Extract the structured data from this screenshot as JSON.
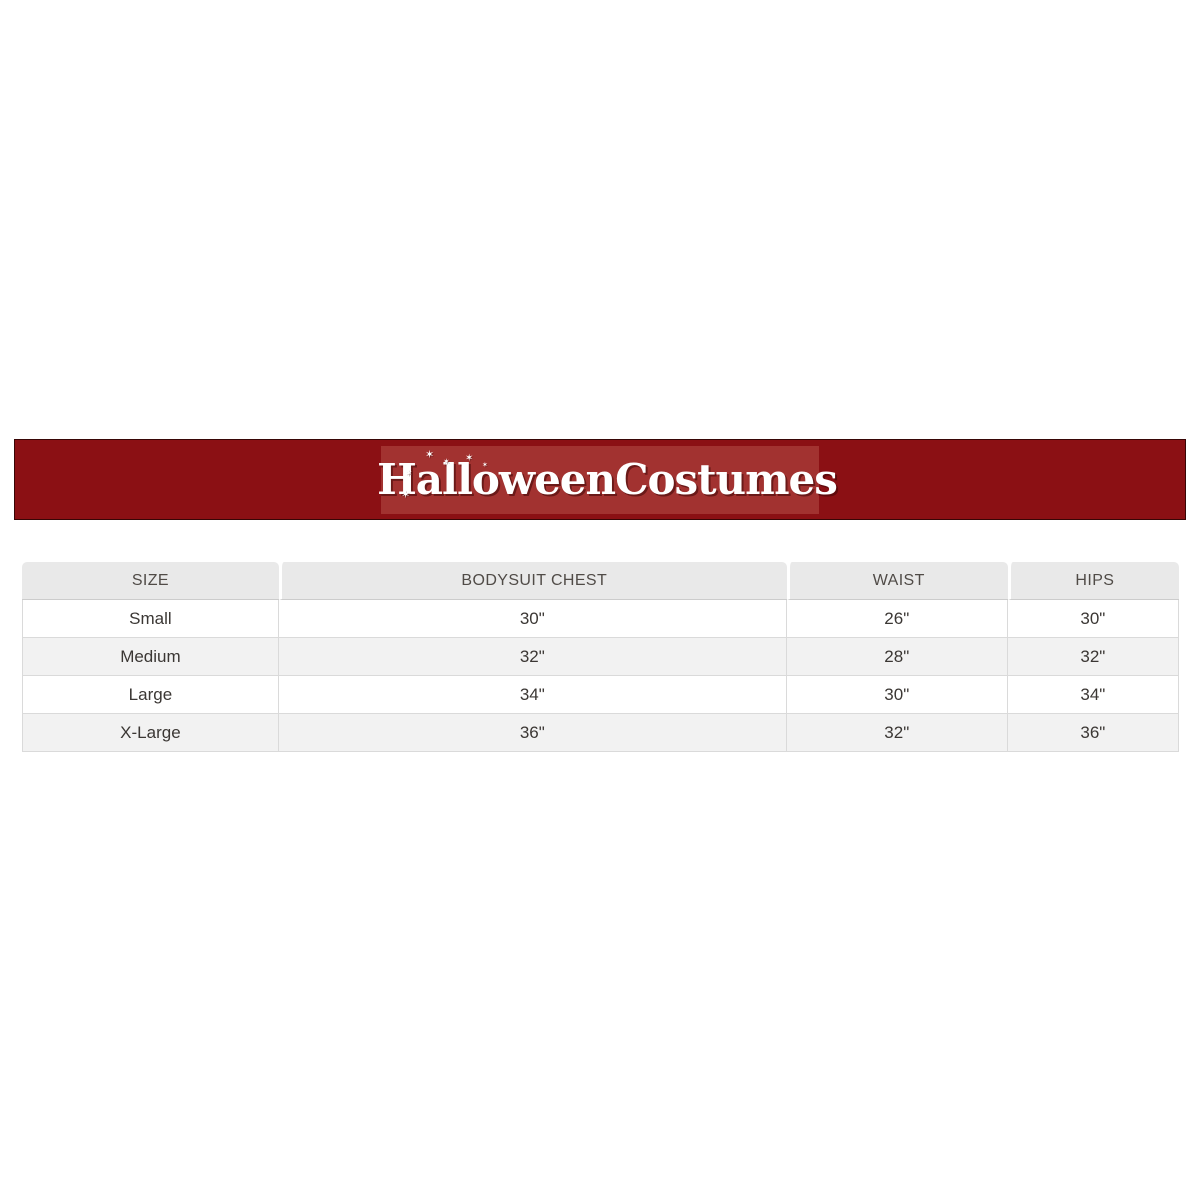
{
  "banner": {
    "logo_text": "HalloweenCostumes",
    "star_icon_char": "✶",
    "outer_background": "#8b1014",
    "inner_background": "#a23230",
    "border_color": "#380606",
    "logo_text_color": "#ffffff"
  },
  "size_chart": {
    "columns": [
      "SIZE",
      "BODYSUIT CHEST",
      "WAIST",
      "HIPS"
    ],
    "rows": [
      {
        "size": "Small",
        "chest": "30\"",
        "waist": "26\"",
        "hips": "30\""
      },
      {
        "size": "Medium",
        "chest": "32\"",
        "waist": "28\"",
        "hips": "32\""
      },
      {
        "size": "Large",
        "chest": "34\"",
        "waist": "30\"",
        "hips": "34\""
      },
      {
        "size": "X-Large",
        "chest": "36\"",
        "waist": "32\"",
        "hips": "36\""
      }
    ],
    "header_background": "#e9e9e9",
    "header_text_color": "#504b47",
    "body_text_color": "#3b3734",
    "alt_row_background": "#f2f2f2",
    "border_color": "#dadada"
  }
}
